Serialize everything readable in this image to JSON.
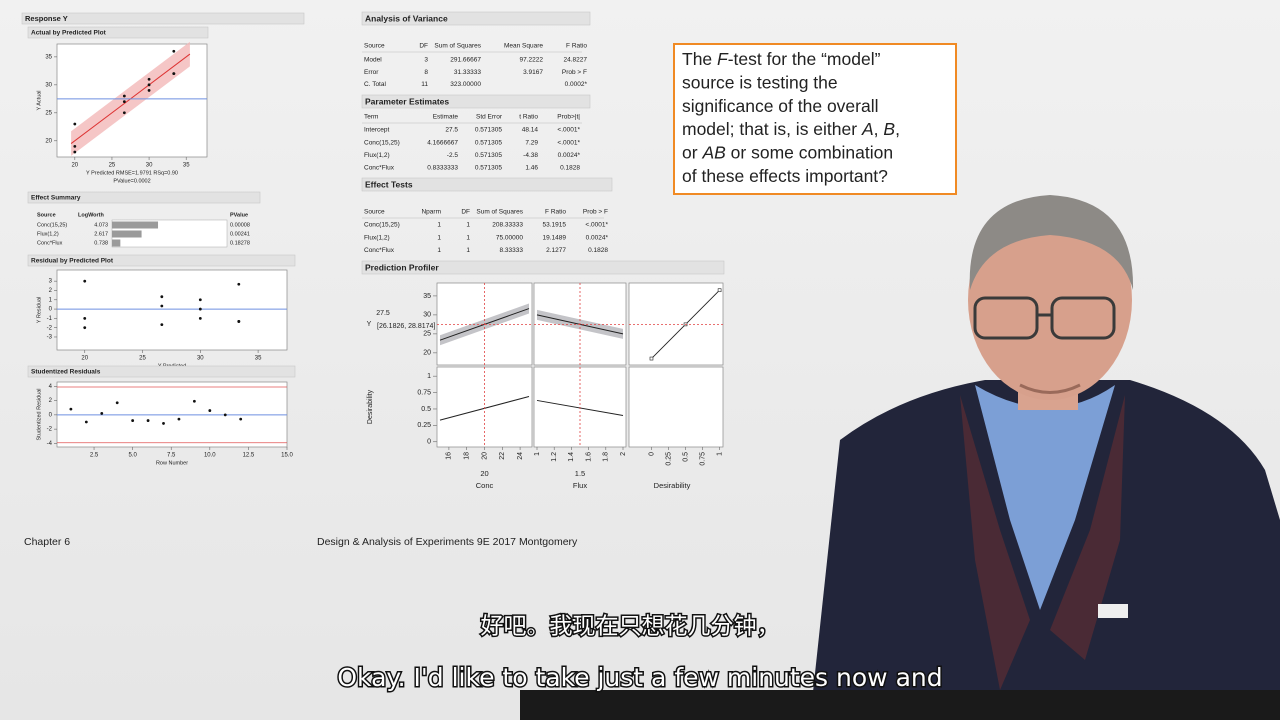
{
  "report": {
    "title": "Response Y",
    "actual_by_predicted": {
      "title": "Actual by Predicted Plot",
      "y_label": "Y Actual",
      "x_label": "Y Predicted RMSE=1.9791 RSq=0.90",
      "note": "PValue=0.0002",
      "xlim": [
        17.6,
        37.8
      ],
      "ylim": [
        17.1,
        37.3
      ],
      "xticks": [
        20,
        25,
        30,
        35
      ],
      "yticks": [
        20,
        25,
        30,
        35
      ],
      "mean": 27.5,
      "x": [
        26.67,
        26.67,
        26.67,
        33.33,
        33.33,
        33.33,
        20,
        20,
        20,
        30,
        30,
        30
      ],
      "y": [
        28,
        25,
        27,
        36,
        32,
        32,
        18,
        19,
        23,
        31,
        30,
        29
      ]
    },
    "effect_summary": {
      "title": "Effect Summary",
      "columns": [
        "Source",
        "LogWorth",
        "PValue"
      ],
      "rows": [
        [
          "Conc(15,25)",
          4.073,
          "0.00008"
        ],
        [
          "Flux(1,2)",
          2.617,
          "0.00241"
        ],
        [
          "Conc*Flux",
          0.738,
          "0.18278"
        ]
      ]
    },
    "residual_by_predicted": {
      "title": "Residual by Predicted Plot",
      "y_label": "Y Residual",
      "x_label": "Y Predicted",
      "xlim": [
        17.6,
        37.5
      ],
      "ylim": [
        -4.4,
        4.2
      ],
      "xticks": [
        20,
        25,
        30,
        35
      ],
      "yticks": [
        -3,
        -2,
        -1,
        0,
        1,
        2,
        3
      ],
      "x": [
        26.67,
        26.67,
        26.67,
        33.33,
        33.33,
        33.33,
        20,
        20,
        20,
        30,
        30,
        30
      ],
      "y": [
        1.33,
        -1.67,
        0.33,
        2.67,
        -1.33,
        -1.33,
        -2,
        -1,
        3,
        1,
        0,
        -1
      ]
    },
    "studentized_residuals": {
      "title": "Studentized Residuals",
      "y_label": "Studentized Residual",
      "x_label": "Row Number",
      "xlim": [
        0.1,
        15
      ],
      "ylim": [
        -4.5,
        4.6
      ],
      "xticks": [
        {
          "value": 2.5,
          "label": "2.5"
        },
        {
          "value": 5,
          "label": "5.0"
        },
        {
          "value": 7.5,
          "label": "7.5"
        },
        {
          "value": 10,
          "label": "10.0"
        },
        {
          "value": 12.5,
          "label": "12.5"
        },
        {
          "value": 15,
          "label": "15.0"
        }
      ],
      "yticks": [
        -4,
        -2,
        0,
        2,
        4
      ],
      "limits": [
        -3.9,
        3.9
      ],
      "x": [
        1,
        2,
        3,
        4,
        5,
        6,
        7,
        8,
        9,
        10,
        11,
        12
      ],
      "y": [
        0.8,
        -1.0,
        0.2,
        1.7,
        -0.8,
        -0.8,
        -1.2,
        -0.6,
        1.9,
        0.6,
        0,
        -0.6
      ]
    },
    "anova": {
      "title": "Analysis of Variance",
      "columns": [
        "Source",
        "DF",
        "Sum of Squares",
        "Mean Square",
        "F Ratio"
      ],
      "rows": [
        [
          "Model",
          "3",
          "291.66667",
          "97.2222",
          "24.8227"
        ],
        [
          "Error",
          "8",
          "31.33333",
          "3.9167",
          "Prob > F"
        ],
        [
          "C. Total",
          "11",
          "323.00000",
          null,
          "0.0002*"
        ]
      ]
    },
    "parameter_estimates": {
      "title": "Parameter Estimates",
      "columns": [
        "Term",
        "Estimate",
        "Std Error",
        "t Ratio",
        "Prob>|t|"
      ],
      "rows": [
        [
          "Intercept",
          "27.5",
          "0.571305",
          "48.14",
          "<.0001*"
        ],
        [
          "Conc(15,25)",
          "4.1666667",
          "0.571305",
          "7.29",
          "<.0001*"
        ],
        [
          "Flux(1,2)",
          "-2.5",
          "0.571305",
          "-4.38",
          "0.0024*"
        ],
        [
          "Conc*Flux",
          "0.8333333",
          "0.571305",
          "1.46",
          "0.1828"
        ]
      ]
    },
    "effect_tests": {
      "title": "Effect Tests",
      "columns": [
        "Source",
        "Nparm",
        "DF",
        "Sum of Squares",
        "F Ratio",
        "Prob > F"
      ],
      "rows": [
        [
          "Conc(15,25)",
          "1",
          "1",
          "208.33333",
          "53.1915",
          "<.0001*"
        ],
        [
          "Flux(1,2)",
          "1",
          "1",
          "75.00000",
          "19.1489",
          "0.0024*"
        ],
        [
          "Conc*Flux",
          "1",
          "1",
          "8.33333",
          "2.1277",
          "0.1828"
        ]
      ]
    },
    "prediction_profiler": {
      "title": "Prediction Profiler",
      "y_label": "Y",
      "y_value": 27.5,
      "y_interval": "[26.1826, 28.8174]",
      "desirability_label": "Desirability",
      "ylim": [
        16.8,
        38.4
      ],
      "yticks": [
        20,
        25,
        30,
        35
      ],
      "dlim": [
        -0.08,
        1.14
      ],
      "dticks": [
        0,
        0.25,
        0.5,
        0.75,
        1
      ],
      "factors": [
        {
          "name": "Conc",
          "current": 20,
          "xlim": [
            15,
            25
          ],
          "xticks": [
            16,
            18,
            20,
            22,
            24
          ],
          "y": [
            23.33,
            31.67
          ],
          "d": [
            0.33,
            0.69
          ]
        },
        {
          "name": "Flux",
          "current": 1.5,
          "xlim": [
            1,
            2
          ],
          "xticks": [
            1,
            1.2,
            1.4,
            1.6,
            1.8,
            2
          ],
          "y": [
            30,
            25
          ],
          "d": [
            0.63,
            0.4
          ]
        }
      ],
      "desirability_axis": {
        "name": "Desirability",
        "xlim": [
          -0.33,
          1.05
        ],
        "xticks": [
          0,
          0.25,
          0.5,
          0.75,
          1
        ]
      }
    }
  },
  "callout": {
    "lines": [
      [
        {
          "text": "The "
        },
        {
          "text": "F",
          "italic": true
        },
        {
          "text": "-test for the “model”"
        }
      ],
      [
        {
          "text": "source is testing the"
        }
      ],
      [
        {
          "text": "significance of the overall"
        }
      ],
      [
        {
          "text": "model; that is, is either "
        },
        {
          "text": "A",
          "italic": true
        },
        {
          "text": ", "
        },
        {
          "text": "B",
          "italic": true
        },
        {
          "text": ","
        }
      ],
      [
        {
          "text": "or "
        },
        {
          "text": "AB",
          "italic": true
        },
        {
          "text": " or some combination"
        }
      ],
      [
        {
          "text": "of these effects important?"
        }
      ]
    ]
  },
  "footer": {
    "left": "Chapter 6",
    "center": "Design & Analysis of Experiments 9E 2017 Montgomery"
  },
  "subtitles": {
    "zh": "好吧。我现在只想花几分钟，",
    "en": "Okay. I'd like to take just a few minutes now and"
  }
}
